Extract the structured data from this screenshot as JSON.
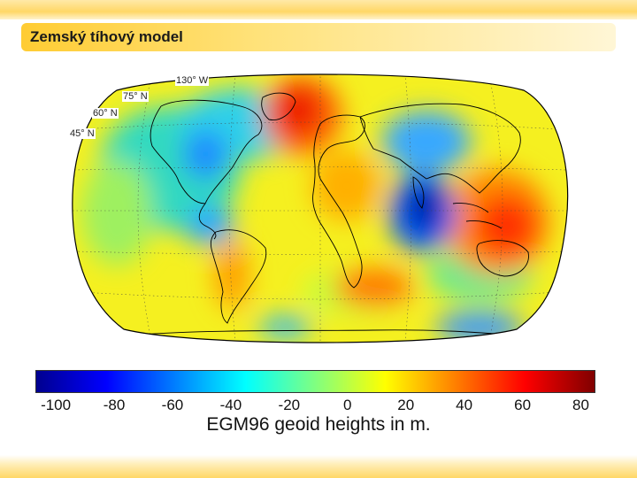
{
  "slide": {
    "title": "Zemský tíhový model"
  },
  "map": {
    "labels": {
      "lon_130w": "130° W",
      "lat_75n": "75° N",
      "lat_60n": "60° N",
      "lat_45n": "45° N"
    },
    "colors": {
      "ocean_base": "#ffe600",
      "high": "#ff2a00",
      "low": "#0030d0",
      "coast": "#000000"
    }
  },
  "colorbar": {
    "ticks": [
      "-100",
      "-80",
      "-60",
      "-40",
      "-20",
      "0",
      "20",
      "40",
      "60",
      "80"
    ],
    "range": [
      -107,
      85
    ],
    "title": "EGM96 geoid heights in m.",
    "colormap": "jet"
  }
}
